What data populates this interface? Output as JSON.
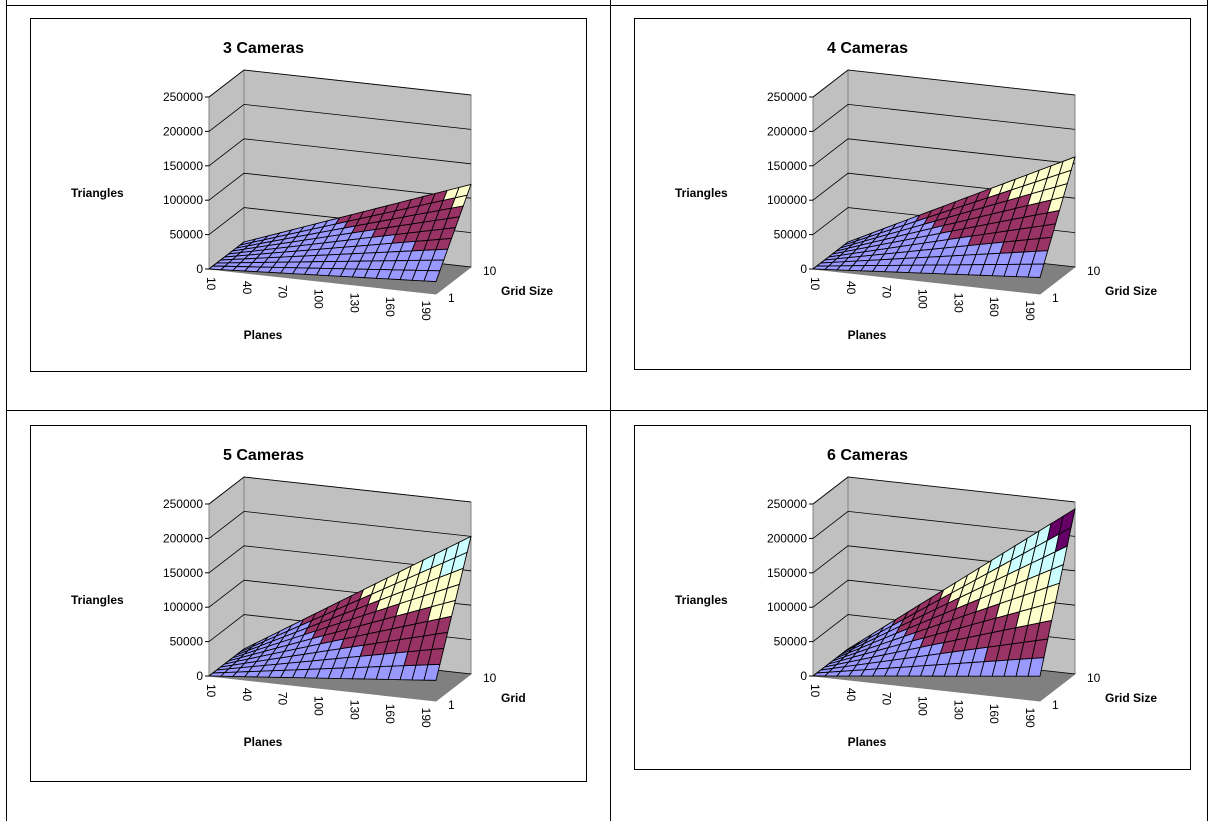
{
  "chart_data": [
    {
      "type": "surface",
      "title": "3 Cameras",
      "zlabel": "Triangles",
      "xlabel": "Planes",
      "ylabel": "Grid Size",
      "zlim": [
        0,
        250000
      ],
      "z_ticks": [
        "0",
        "50000",
        "100000",
        "150000",
        "200000",
        "250000"
      ],
      "x_ticks": [
        "10",
        "40",
        "70",
        "100",
        "130",
        "160",
        "190"
      ],
      "y_ticks": [
        "1",
        "10"
      ],
      "x_range": [
        10,
        200
      ],
      "y_range": [
        1,
        10
      ],
      "max_value": 120000,
      "band_colors": [
        "#9999ff",
        "#993366",
        "#ffffcc"
      ],
      "grid": true
    },
    {
      "type": "surface",
      "title": "4 Cameras",
      "zlabel": "Triangles",
      "xlabel": "Planes",
      "ylabel": "Grid Size",
      "zlim": [
        0,
        250000
      ],
      "z_ticks": [
        "0",
        "50000",
        "100000",
        "150000",
        "200000",
        "250000"
      ],
      "x_ticks": [
        "10",
        "40",
        "70",
        "100",
        "130",
        "160",
        "190"
      ],
      "y_ticks": [
        "1",
        "10"
      ],
      "x_range": [
        10,
        200
      ],
      "y_range": [
        1,
        10
      ],
      "max_value": 160000,
      "band_colors": [
        "#9999ff",
        "#993366",
        "#ffffcc"
      ],
      "grid": true
    },
    {
      "type": "surface",
      "title": "5 Cameras",
      "zlabel": "Triangles",
      "xlabel": "Planes",
      "ylabel": "Grid",
      "zlim": [
        0,
        250000
      ],
      "z_ticks": [
        "0",
        "50000",
        "100000",
        "150000",
        "200000",
        "250000"
      ],
      "x_ticks": [
        "10",
        "40",
        "70",
        "100",
        "130",
        "160",
        "190"
      ],
      "y_ticks": [
        "1",
        "10"
      ],
      "x_range": [
        10,
        200
      ],
      "y_range": [
        1,
        10
      ],
      "max_value": 200000,
      "band_colors": [
        "#9999ff",
        "#993366",
        "#ffffcc",
        "#ccffff"
      ],
      "grid": true
    },
    {
      "type": "surface",
      "title": "6 Cameras",
      "zlabel": "Triangles",
      "xlabel": "Planes",
      "ylabel": "Grid Size",
      "zlim": [
        0,
        250000
      ],
      "z_ticks": [
        "0",
        "50000",
        "100000",
        "150000",
        "200000",
        "250000"
      ],
      "x_ticks": [
        "10",
        "40",
        "70",
        "100",
        "130",
        "160",
        "190"
      ],
      "y_ticks": [
        "1",
        "10"
      ],
      "x_range": [
        10,
        200
      ],
      "y_range": [
        1,
        10
      ],
      "max_value": 240000,
      "band_colors": [
        "#9999ff",
        "#993366",
        "#ffffcc",
        "#ccffff",
        "#660066"
      ],
      "grid": true
    }
  ]
}
